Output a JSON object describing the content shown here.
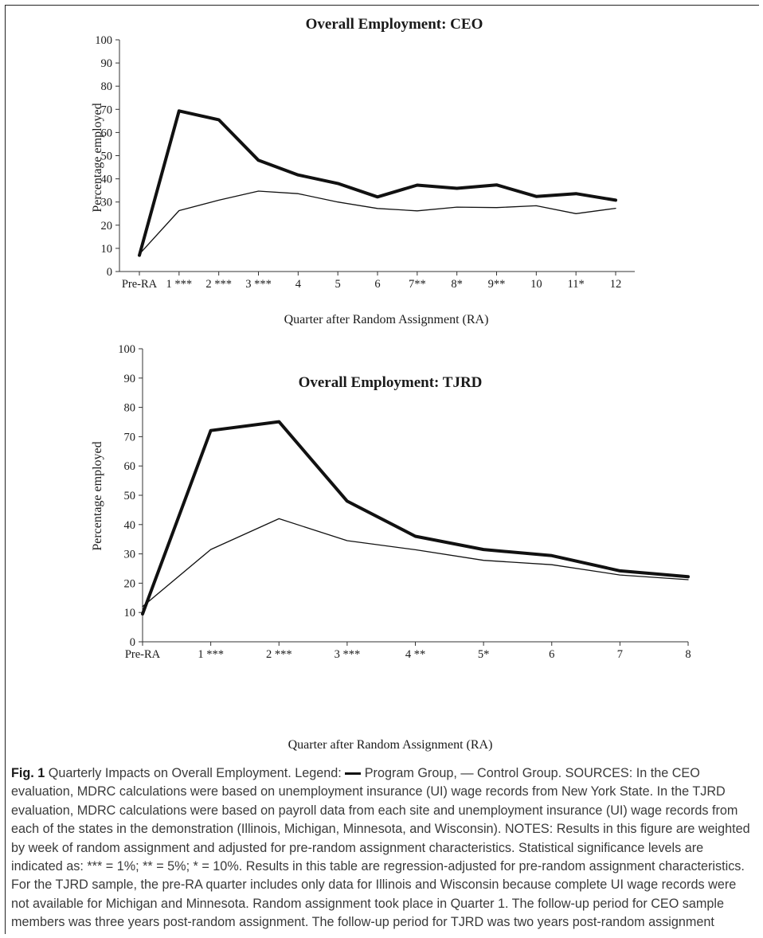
{
  "chart_data": [
    {
      "type": "line",
      "title": "Overall Employment: CEO",
      "xlabel": "Quarter after Random Assignment (RA)",
      "ylabel": "Percentage employed",
      "ylim": [
        0,
        100
      ],
      "yticks": [
        0,
        10,
        20,
        30,
        40,
        50,
        60,
        70,
        80,
        90,
        100
      ],
      "categories": [
        "Pre-RA",
        "1 ***",
        "2 ***",
        "3 ***",
        "4",
        "5",
        "6",
        "7**",
        "8*",
        "9**",
        "10",
        "11*",
        "12"
      ],
      "grid": false,
      "series": [
        {
          "style": "program",
          "color": "#111111",
          "width": 4,
          "values": [
            7.0,
            69.3,
            65.5,
            48.0,
            41.7,
            38.0,
            32.2,
            37.3,
            35.9,
            37.4,
            32.4,
            33.6,
            30.8
          ]
        },
        {
          "style": "control",
          "color": "#111111",
          "width": 1.3,
          "values": [
            7.5,
            26.3,
            30.8,
            34.7,
            33.6,
            30.0,
            27.2,
            26.2,
            27.8,
            27.6,
            28.4,
            25.0,
            27.3
          ]
        }
      ]
    },
    {
      "type": "line",
      "title": "Overall Employment: TJRD",
      "xlabel": "Quarter after Random Assignment (RA)",
      "ylabel": "Percentage employed",
      "ylim": [
        0,
        100
      ],
      "yticks": [
        0,
        10,
        20,
        30,
        40,
        50,
        60,
        70,
        80,
        90,
        100
      ],
      "categories": [
        "Pre-RA",
        "1 ***",
        "2 ***",
        "3 ***",
        "4 **",
        "5*",
        "6",
        "7",
        "8"
      ],
      "grid": false,
      "series": [
        {
          "style": "program",
          "color": "#111111",
          "width": 4,
          "values": [
            9.5,
            72.1,
            75.1,
            48.0,
            36.0,
            31.5,
            29.4,
            24.2,
            22.2
          ]
        },
        {
          "style": "control",
          "color": "#111111",
          "width": 1.3,
          "values": [
            12.0,
            31.5,
            42.0,
            34.5,
            31.4,
            27.8,
            26.3,
            22.8,
            21.2
          ]
        }
      ]
    }
  ],
  "caption": {
    "fig_label": "Fig. 1",
    "title_start": " Quarterly Impacts on Overall Employment. Legend: ",
    "legend_program": " Program Group, ",
    "legend_control": "— Control Group. SOURCES: In the CEO evaluation, MDRC calculations were based on unemployment insurance (UI) wage records from New York State. In the TJRD evaluation, MDRC calculations were based on payroll data from each site and unemployment insurance (UI) wage records from each of the states in the demonstration (Illinois, Michigan, Minnesota, and Wisconsin). NOTES: Results in this figure are weighted by week of random assignment and adjusted for pre-random assignment characteristics. Statistical significance levels are indicated as: *** = 1%; ** = 5%; * = 10%. Results in this table are regression-adjusted for pre-random assignment characteristics. For the TJRD sample, the pre-RA quarter includes only data for Illinois and Wisconsin because complete UI wage records were not available for Michigan and Minnesota. Random assignment took place in Quarter 1. The follow-up period for CEO sample members was three years post-random assignment. The follow-up period for TJRD was two years post-random assignment"
  }
}
